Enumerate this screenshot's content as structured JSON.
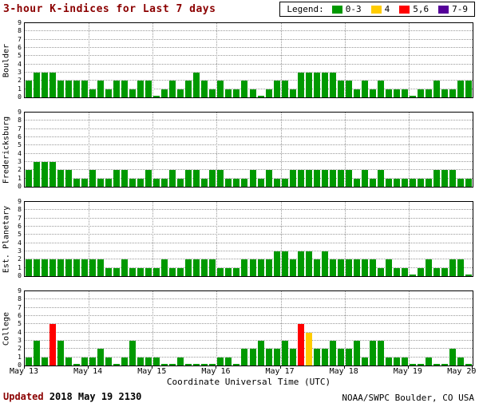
{
  "title": "3-hour K-indices for Last 7 days",
  "legend": {
    "label": "Legend:",
    "position": "top-right",
    "items": [
      {
        "label": "0-3",
        "color": "#009900"
      },
      {
        "label": "4",
        "color": "#ffcc00"
      },
      {
        "label": "5,6",
        "color": "#ff0000"
      },
      {
        "label": "7-9",
        "color": "#550099"
      }
    ]
  },
  "footer": {
    "updated_label": "Updated",
    "updated_value": "2018 May 19 2130",
    "credit": "NOAA/SWPC Boulder, CO USA"
  },
  "chart_data": {
    "type": "bar",
    "title": "3-hour K-indices for Last 7 days",
    "xlabel": "Coordinate Universal Time (UTC)",
    "ylim": [
      0,
      9
    ],
    "y_ticks": [
      0,
      1,
      2,
      3,
      4,
      5,
      6,
      7,
      8,
      9
    ],
    "x_tick_labels": [
      "May 13",
      "May 14",
      "May 15",
      "May 16",
      "May 17",
      "May 18",
      "May 19",
      "May 20"
    ],
    "interval_hours": 3,
    "bars_per_day": 8,
    "grid": true,
    "color_rule": "K 0-3 green, K 4 yellow, K 5-6 red, K 7-9 purple",
    "series": [
      {
        "name": "Boulder",
        "values": [
          2,
          3,
          3,
          3,
          2,
          2,
          2,
          2,
          1,
          2,
          1,
          2,
          2,
          1,
          2,
          2,
          0,
          1,
          2,
          1,
          2,
          3,
          2,
          1,
          2,
          1,
          1,
          2,
          1,
          0,
          1,
          2,
          2,
          1,
          3,
          3,
          3,
          3,
          3,
          2,
          2,
          1,
          2,
          1,
          2,
          1,
          1,
          1,
          0,
          1,
          1,
          2,
          1,
          1,
          2,
          2
        ]
      },
      {
        "name": "Fredericksburg",
        "values": [
          2,
          3,
          3,
          3,
          2,
          2,
          1,
          1,
          2,
          1,
          1,
          2,
          2,
          1,
          1,
          2,
          1,
          1,
          2,
          1,
          2,
          2,
          1,
          2,
          2,
          1,
          1,
          1,
          2,
          1,
          2,
          1,
          1,
          2,
          2,
          2,
          2,
          2,
          2,
          2,
          2,
          1,
          2,
          1,
          2,
          1,
          1,
          1,
          1,
          1,
          1,
          2,
          2,
          2,
          1,
          1
        ]
      },
      {
        "name": "Est. Planetary",
        "values": [
          2,
          2,
          2,
          2,
          2,
          2,
          2,
          2,
          2,
          2,
          1,
          1,
          2,
          1,
          1,
          1,
          1,
          2,
          1,
          1,
          2,
          2,
          2,
          2,
          1,
          1,
          1,
          2,
          2,
          2,
          2,
          3,
          3,
          2,
          3,
          3,
          2,
          3,
          2,
          2,
          2,
          2,
          2,
          2,
          1,
          2,
          1,
          1,
          0,
          1,
          2,
          1,
          1,
          2,
          2,
          0
        ]
      },
      {
        "name": "College",
        "values": [
          1,
          3,
          1,
          5,
          3,
          1,
          0,
          1,
          1,
          2,
          1,
          0,
          1,
          3,
          1,
          1,
          1,
          0,
          0,
          1,
          0,
          0,
          0,
          0,
          1,
          1,
          0,
          2,
          2,
          3,
          2,
          2,
          3,
          2,
          5,
          4,
          2,
          2,
          3,
          2,
          2,
          3,
          1,
          3,
          3,
          1,
          1,
          1,
          0,
          0,
          1,
          0,
          0,
          2,
          1,
          0
        ]
      }
    ]
  }
}
